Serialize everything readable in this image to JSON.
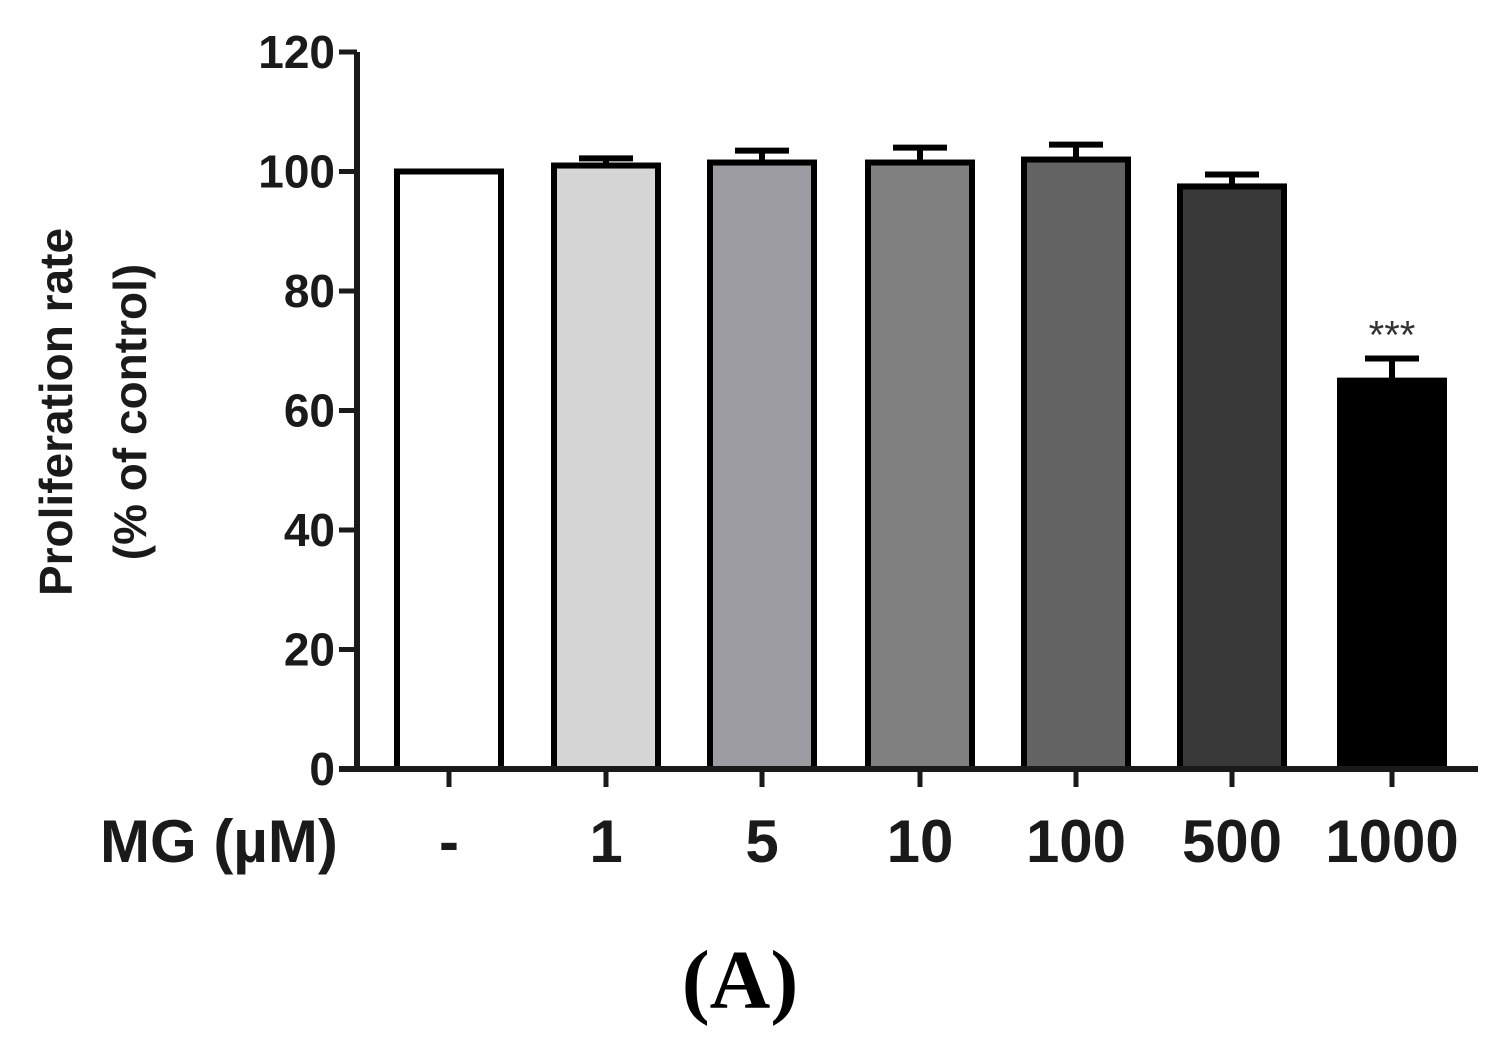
{
  "chart_data": {
    "type": "bar",
    "panel_label": "(A)",
    "ylabel_line1": "Proliferation rate",
    "ylabel_line2": "(% of control)",
    "x_axis_prefix": "MG (µM)",
    "categories": [
      "-",
      "1",
      "5",
      "10",
      "100",
      "500",
      "1000"
    ],
    "values": [
      100,
      101,
      101.5,
      101.5,
      102,
      97.5,
      65
    ],
    "errors": [
      0,
      1.2,
      2,
      2.5,
      2.5,
      2,
      3.7
    ],
    "significance": [
      "",
      "",
      "",
      "",
      "",
      "",
      "***"
    ],
    "bar_colors": [
      "#ffffff",
      "#d6d6d6",
      "#9c9ca2",
      "#808080",
      "#636363",
      "#383838",
      "#000000"
    ],
    "ylim": [
      0,
      120
    ],
    "yticks": [
      0,
      20,
      40,
      60,
      80,
      100,
      120
    ],
    "grid": false
  }
}
